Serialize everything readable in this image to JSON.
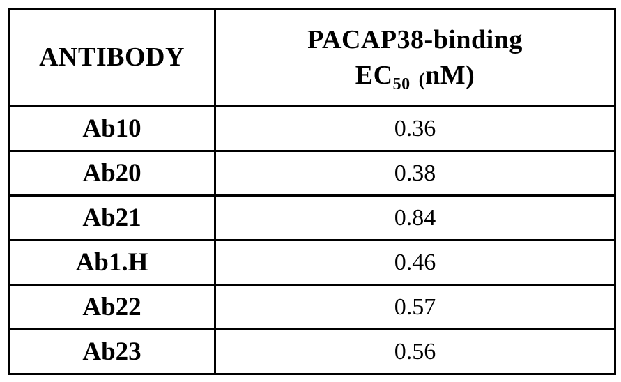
{
  "table": {
    "header": {
      "antibody": "ANTIBODY",
      "ec50_line1": "PACAP38-binding",
      "ec50_label": "EC",
      "ec50_subscript": "50",
      "ec50_open_paren": "(",
      "ec50_unit": "nM)"
    },
    "rows": [
      {
        "antibody": "Ab10",
        "ec50": "0.36"
      },
      {
        "antibody": "Ab20",
        "ec50": "0.38"
      },
      {
        "antibody": "Ab21",
        "ec50": "0.84"
      },
      {
        "antibody": "Ab1.H",
        "ec50": "0.46"
      },
      {
        "antibody": "Ab22",
        "ec50": "0.57"
      },
      {
        "antibody": "Ab23",
        "ec50": "0.56"
      }
    ],
    "colors": {
      "border": "#000000",
      "background": "#ffffff",
      "text": "#000000"
    }
  }
}
